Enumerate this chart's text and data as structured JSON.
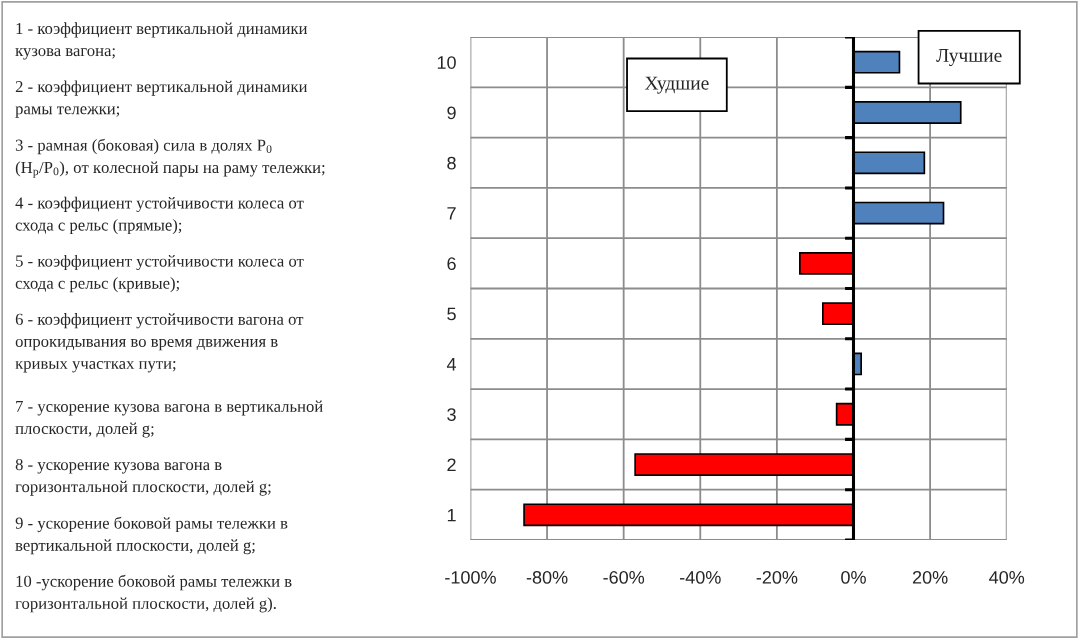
{
  "chart_data": {
    "type": "bar",
    "orientation": "horizontal",
    "categories": [
      "10",
      "9",
      "8",
      "7",
      "6",
      "5",
      "4",
      "3",
      "2",
      "1"
    ],
    "values": [
      12,
      28,
      18.5,
      23.5,
      -14,
      -8,
      2,
      -4.4,
      -57,
      -86
    ],
    "colors": [
      "#4f81bd",
      "#4f81bd",
      "#4f81bd",
      "#4f81bd",
      "#ff0000",
      "#ff0000",
      "#4f81bd",
      "#ff0000",
      "#ff0000",
      "#ff0000"
    ],
    "xlim": [
      -100,
      40
    ],
    "xticks": [
      {
        "value": -100,
        "label": "-100%"
      },
      {
        "value": -80,
        "label": "-80%"
      },
      {
        "value": -60,
        "label": "-60%"
      },
      {
        "value": -40,
        "label": "-40%"
      },
      {
        "value": -20,
        "label": "-20%"
      },
      {
        "value": 0,
        "label": "0%"
      },
      {
        "value": 20,
        "label": "20%"
      },
      {
        "value": 40,
        "label": "40%"
      }
    ],
    "grid": true,
    "annotations": [
      "Худшие",
      "Лучшие",
      "1 - коэффициент вертикальной динамики\nкузова вагона;",
      "2 - коэффициент вертикальной динамики\nрамы тележки;",
      "3 - рамная (боковая) сила в долях P$_{0}$\n(H$_{p}$/P$_{0}$), от колесной пары на раму тележки;",
      "4 - коэффициент устойчивости колеса от\nсхода с рельс (прямые);",
      "5 - коэффициент устойчивости колеса от\nсхода с рельс (кривые);",
      "6 - коэффициент устойчивости вагона от\nопрокидывания во время движения в\nкривых участках пути;",
      "7 - ускорение кузова вагона в вертикальной\nплоскости, долей g;",
      "8 - ускорение кузова вагона в\nгоризонтальной плоскости, долей g;",
      "9 - ускорение боковой рамы тележки в\nвертикальной плоскости, долей g;",
      "10 -ускорение боковой рамы тележки в\nгоризонтальной плоскости, долей g)."
    ]
  }
}
